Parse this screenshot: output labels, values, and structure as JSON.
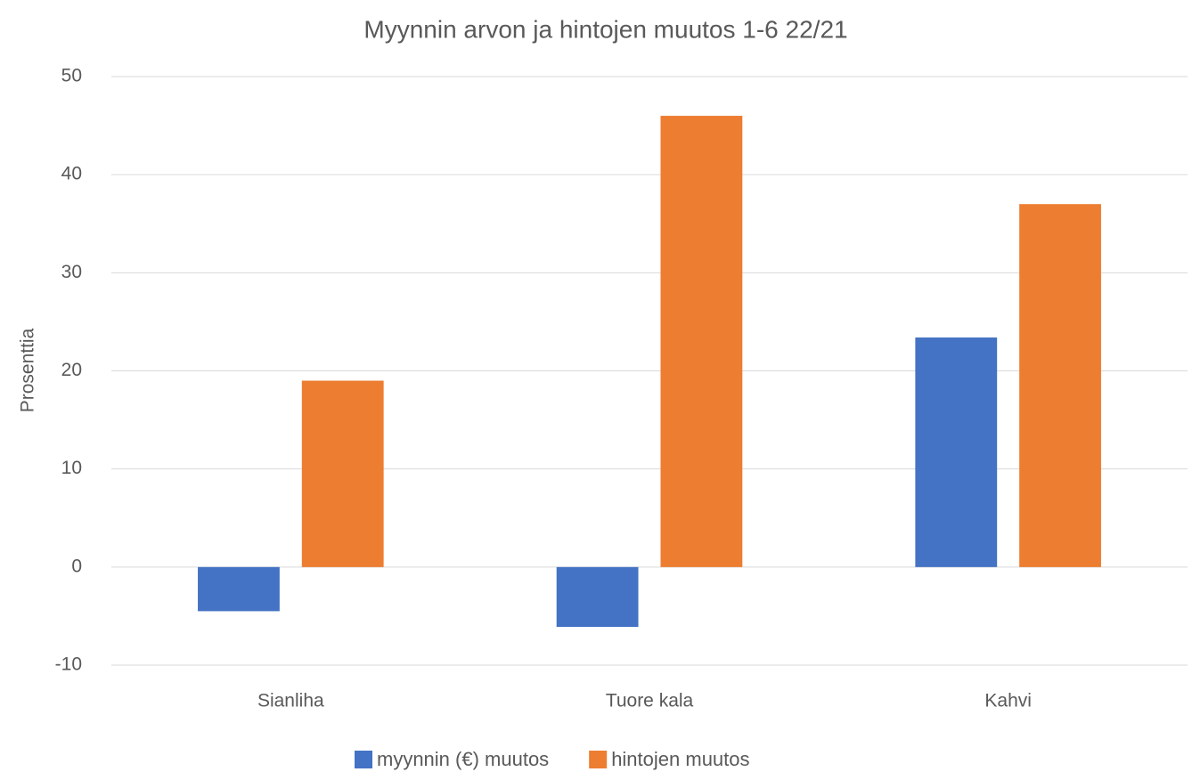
{
  "chart_data": {
    "type": "bar",
    "title": "Myynnin arvon ja hintojen muutos 1-6 22/21",
    "y_label": "Prosenttia",
    "categories": [
      "Sianliha",
      "Tuore kala",
      "Kahvi"
    ],
    "series": [
      {
        "name": "myynnin (€) muutos",
        "color": "#4472c4",
        "values": [
          -4.5,
          -6.1,
          23.4
        ]
      },
      {
        "name": "hintojen muutos",
        "color": "#ed7d31",
        "values": [
          19,
          46,
          37
        ]
      }
    ],
    "ylim": [
      -10,
      50
    ],
    "yticks": [
      -10,
      0,
      10,
      20,
      30,
      40,
      50
    ],
    "grid": true,
    "legend": "bottom"
  }
}
